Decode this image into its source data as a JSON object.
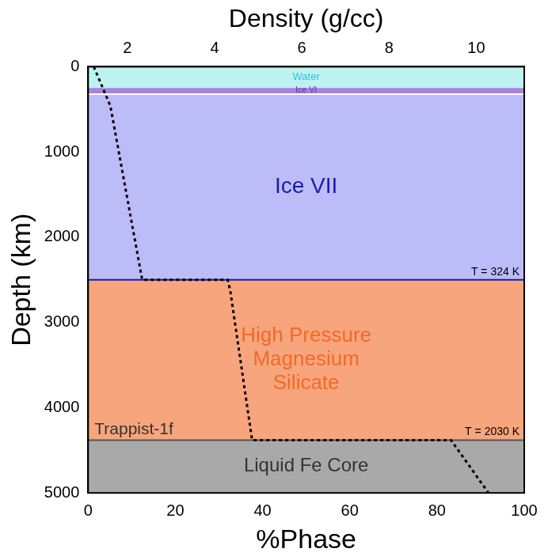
{
  "chart_data": {
    "type": "line",
    "x_label": "%Phase",
    "x2_label": "Density (g/cc)",
    "y_label": "Depth (km)",
    "xlim": [
      0,
      100
    ],
    "xticks": [
      0,
      20,
      40,
      60,
      80,
      100
    ],
    "x2lim": [
      1.1,
      11.1
    ],
    "x2ticks": [
      2,
      4,
      6,
      8,
      10
    ],
    "ylim": [
      0,
      5000
    ],
    "yticks": [
      0,
      1000,
      2000,
      3000,
      4000,
      5000
    ],
    "grid": false,
    "legend": false,
    "annotation": "Trappist-1f",
    "layers": [
      {
        "label": [
          "Water"
        ],
        "top": 0,
        "bottom": 240,
        "percent_phase": 100,
        "color": "#bdf2f1",
        "label_color": "#2fc3d8",
        "boundary_color": "#bdf2f1"
      },
      {
        "label": [
          "Ice VI"
        ],
        "top": 240,
        "bottom": 320,
        "percent_phase": 100,
        "color": "#a783dc",
        "label_color": "#6b2fb8",
        "boundary_color": "#ffffff"
      },
      {
        "label": [
          "Ice VII"
        ],
        "top": 320,
        "bottom": 2500,
        "percent_phase": 100,
        "color": "#bcbcf8",
        "label_color": "#1c1ca8",
        "boundary_color": "#1c1ca8",
        "boundary_label": "T = 324 K"
      },
      {
        "label": [
          "High Pressure",
          "Magnesium",
          "Silicate"
        ],
        "top": 2500,
        "bottom": 4380,
        "percent_phase": 100,
        "color": "#f7a57c",
        "label_color": "#f26a28",
        "boundary_color": "#555555",
        "boundary_label": "T = 2030 K"
      },
      {
        "label": [
          "Liquid Fe Core"
        ],
        "top": 4380,
        "bottom": 5000,
        "percent_phase": 100,
        "color": "#a9a9a9",
        "label_color": "#333333",
        "boundary_color": "#a9a9a9"
      }
    ],
    "series": [
      {
        "axis": "x2",
        "color": "#000000",
        "line_style": "dashed",
        "x": [
          1.23,
          1.61,
          2.34,
          4.3,
          4.36,
          4.86,
          9.42,
          10.28
        ],
        "values": [
          0,
          460,
          2500,
          2500,
          2630,
          4380,
          4380,
          5000
        ]
      }
    ]
  }
}
